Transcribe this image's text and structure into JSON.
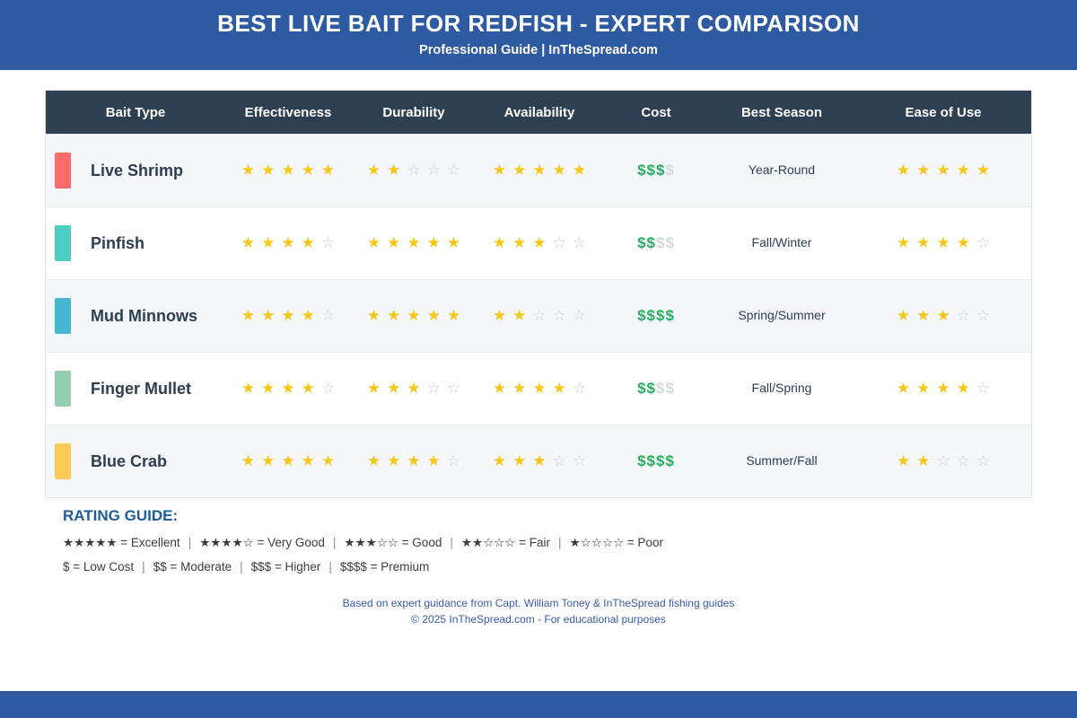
{
  "banner": {
    "title": "BEST LIVE BAIT FOR REDFISH - EXPERT COMPARISON",
    "subtitle": "Professional Guide | InTheSpread.com",
    "bg_color": "#2d5aa0"
  },
  "table": {
    "columns": [
      "Bait Type",
      "Effectiveness",
      "Durability",
      "Availability",
      "Cost",
      "Best Season",
      "Ease of Use"
    ],
    "max_stars": 5,
    "max_cost_level": 4,
    "rows": [
      {
        "bait": "Live Shrimp",
        "swatch_color": "#ff6b6b",
        "effectiveness": 5,
        "durability": 2,
        "availability": 5,
        "cost_level": 3,
        "best_season": "Year-Round",
        "ease_of_use": 5
      },
      {
        "bait": "Pinfish",
        "swatch_color": "#4ecdc4",
        "effectiveness": 4,
        "durability": 5,
        "availability": 3,
        "cost_level": 2,
        "best_season": "Fall/Winter",
        "ease_of_use": 4
      },
      {
        "bait": "Mud Minnows",
        "swatch_color": "#45b7d1",
        "effectiveness": 4,
        "durability": 5,
        "availability": 2,
        "cost_level": 4,
        "best_season": "Spring/Summer",
        "ease_of_use": 3
      },
      {
        "bait": "Finger Mullet",
        "swatch_color": "#96ceb4",
        "effectiveness": 4,
        "durability": 3,
        "availability": 4,
        "cost_level": 2,
        "best_season": "Fall/Spring",
        "ease_of_use": 4
      },
      {
        "bait": "Blue Crab",
        "swatch_color": "#feca57",
        "effectiveness": 5,
        "durability": 4,
        "availability": 3,
        "cost_level": 4,
        "best_season": "Summer/Fall",
        "ease_of_use": 2
      }
    ]
  },
  "rating_guide": {
    "title": "RATING GUIDE:",
    "star_items": [
      "★★★★★ = Excellent",
      "★★★★☆ = Very Good",
      "★★★☆☆ = Good",
      "★★☆☆☆ = Fair",
      "★☆☆☆☆ = Poor"
    ],
    "cost_items": [
      "$ = Low Cost",
      "$$ = Moderate",
      "$$$ = Higher",
      "$$$$ = Premium"
    ],
    "separator": "|"
  },
  "footer": {
    "line1": "Based on expert guidance from Capt. William Toney & InTheSpread fishing guides",
    "line2": "© 2025 InTheSpread.com - For educational purposes"
  },
  "colors": {
    "star_filled": "#f5c71b",
    "star_empty": "#c9ced4",
    "cost_active": "#27ae60",
    "cost_inactive": "#d5d8dc"
  },
  "chart_data": {
    "type": "table",
    "title": "BEST LIVE BAIT FOR REDFISH - EXPERT COMPARISON",
    "subtitle": "Professional Guide | InTheSpread.com",
    "columns": [
      "Bait Type",
      "Effectiveness (of 5)",
      "Durability (of 5)",
      "Availability (of 5)",
      "Cost (of $$$$)",
      "Best Season",
      "Ease of Use (of 5)"
    ],
    "rows": [
      [
        "Live Shrimp",
        5,
        2,
        5,
        "$$$",
        "Year-Round",
        5
      ],
      [
        "Pinfish",
        4,
        5,
        3,
        "$$",
        "Fall/Winter",
        4
      ],
      [
        "Mud Minnows",
        4,
        5,
        2,
        "$$$$",
        "Spring/Summer",
        3
      ],
      [
        "Finger Mullet",
        4,
        3,
        4,
        "$$",
        "Fall/Spring",
        4
      ],
      [
        "Blue Crab",
        5,
        4,
        3,
        "$$$$",
        "Summer/Fall",
        2
      ]
    ],
    "legend": {
      "stars": [
        "5=Excellent",
        "4=Very Good",
        "3=Good",
        "2=Fair",
        "1=Poor"
      ],
      "cost": [
        "$=Low Cost",
        "$$=Moderate",
        "$$$=Higher",
        "$$$$=Premium"
      ]
    }
  }
}
